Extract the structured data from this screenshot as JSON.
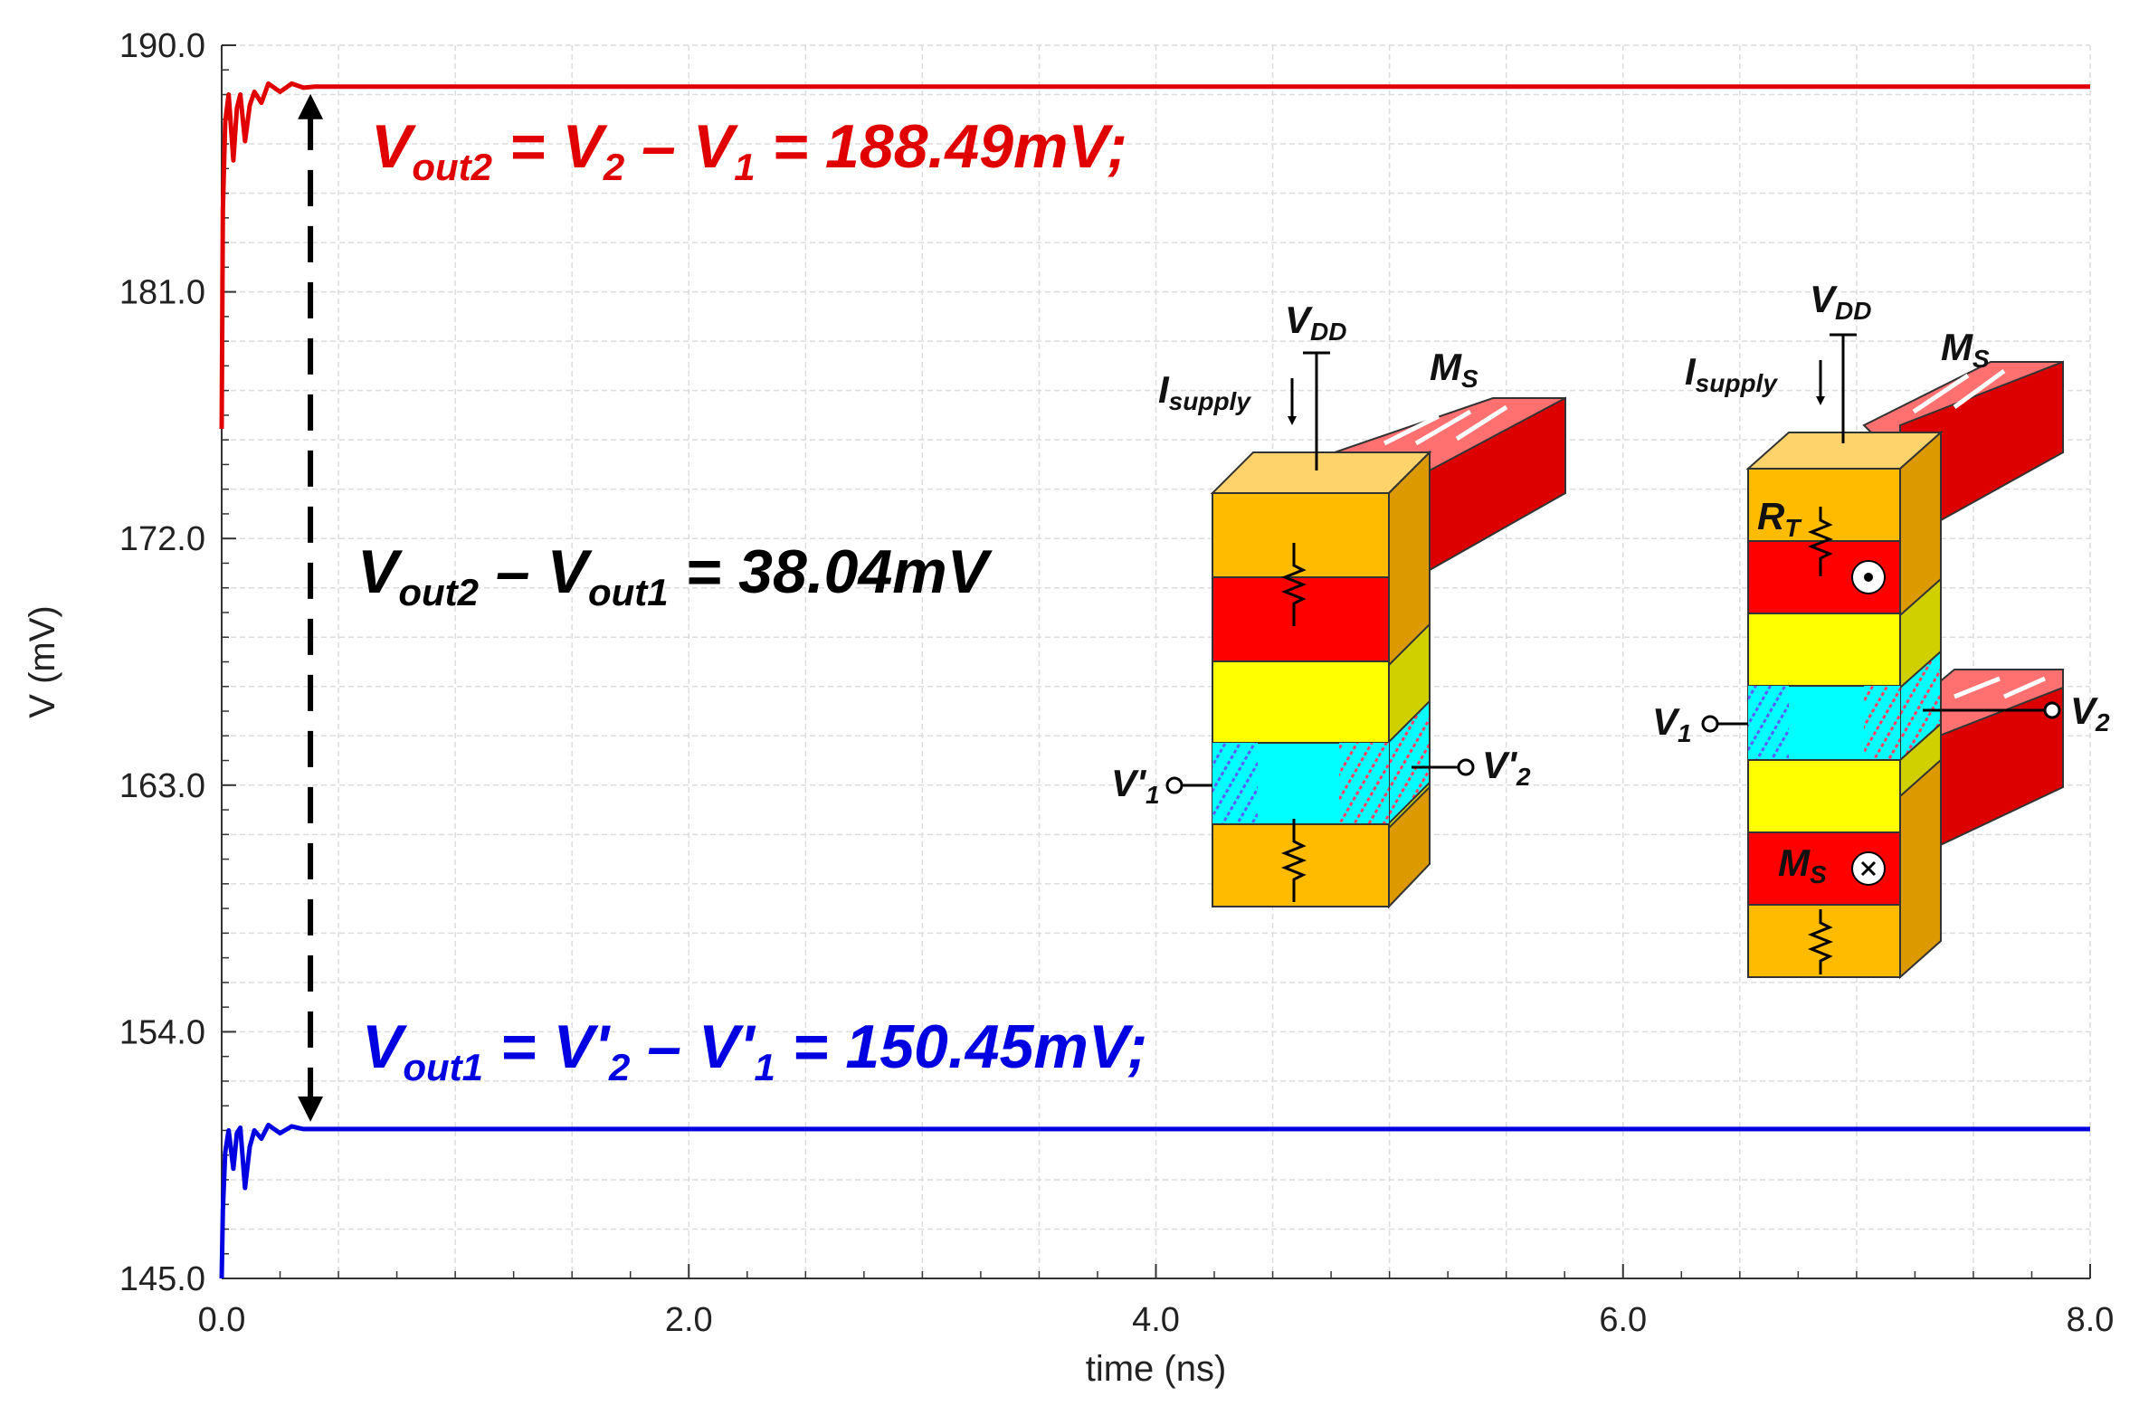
{
  "chart_data": {
    "type": "line",
    "title": "",
    "xlabel": "time (ns)",
    "ylabel": "V (mV)",
    "xlim": [
      0.0,
      8.0
    ],
    "ylim": [
      145.0,
      190.0
    ],
    "x_ticks": [
      0.0,
      2.0,
      4.0,
      6.0,
      8.0
    ],
    "x_tick_labels": [
      "0.0",
      "2.0",
      "4.0",
      "6.0",
      "8.0"
    ],
    "y_ticks": [
      145.0,
      154.0,
      163.0,
      172.0,
      181.0,
      190.0
    ],
    "y_tick_labels": [
      "145.0",
      "154.0",
      "163.0",
      "172.0",
      "181.0",
      "190.0"
    ],
    "grid": true,
    "series": [
      {
        "name": "Vout2",
        "color": "#e00000",
        "x": [
          0.0,
          0.005,
          0.015,
          0.03,
          0.05,
          0.065,
          0.08,
          0.1,
          0.12,
          0.14,
          0.17,
          0.2,
          0.25,
          0.3,
          0.35,
          0.4,
          1.0,
          2.0,
          4.0,
          6.0,
          8.0
        ],
        "values": [
          176.0,
          184.0,
          187.2,
          188.2,
          185.8,
          187.7,
          188.2,
          186.5,
          187.8,
          188.3,
          187.9,
          188.6,
          188.3,
          188.6,
          188.45,
          188.49,
          188.49,
          188.49,
          188.49,
          188.49,
          188.49
        ]
      },
      {
        "name": "Vout1",
        "color": "#0000e0",
        "x": [
          0.0,
          0.005,
          0.015,
          0.03,
          0.05,
          0.065,
          0.08,
          0.1,
          0.12,
          0.14,
          0.17,
          0.2,
          0.25,
          0.3,
          0.35,
          0.4,
          1.0,
          2.0,
          4.0,
          6.0,
          8.0
        ],
        "values": [
          145.0,
          147.5,
          149.6,
          150.4,
          149.0,
          150.3,
          150.5,
          148.3,
          149.8,
          150.4,
          150.1,
          150.6,
          150.3,
          150.55,
          150.45,
          150.45,
          150.45,
          150.45,
          150.45,
          150.45,
          150.45
        ]
      }
    ],
    "arrow": {
      "x": 0.38,
      "y_from": 150.45,
      "y_to": 188.49
    },
    "annotations": {
      "vout2": {
        "main": "V",
        "sub1": "out2",
        "mid": " = V",
        "sub2": "2",
        "dash": " – V",
        "sub3": "1",
        "tail": " = 188.49mV;"
      },
      "diff": {
        "a": "V",
        "sub1": "out2",
        "dash": " – V",
        "sub2": "out1",
        "tail": " =  38.04mV"
      },
      "vout1": {
        "main": "V",
        "sub1": "out1",
        "mid": " = V'",
        "sub2": "2",
        "dash": " – V'",
        "sub3": "1",
        "tail": " = 150.45mV;"
      }
    }
  },
  "diagram1": {
    "vdd": "V",
    "vdd_sub": "DD",
    "isupply": "I",
    "isupply_sub": "supply",
    "ms": "M",
    "ms_sub": "S",
    "v1": "V'",
    "v1_sub": "1",
    "v2": "V'",
    "v2_sub": "2"
  },
  "diagram2": {
    "vdd": "V",
    "vdd_sub": "DD",
    "isupply": "I",
    "isupply_sub": "supply",
    "ms_top": "M",
    "ms_top_sub": "S",
    "rt": "R",
    "rt_sub": "T",
    "v1": "V",
    "v1_sub": "1",
    "v2": "V",
    "v2_sub": "2",
    "ms_bot": "M",
    "ms_bot_sub": "S"
  }
}
